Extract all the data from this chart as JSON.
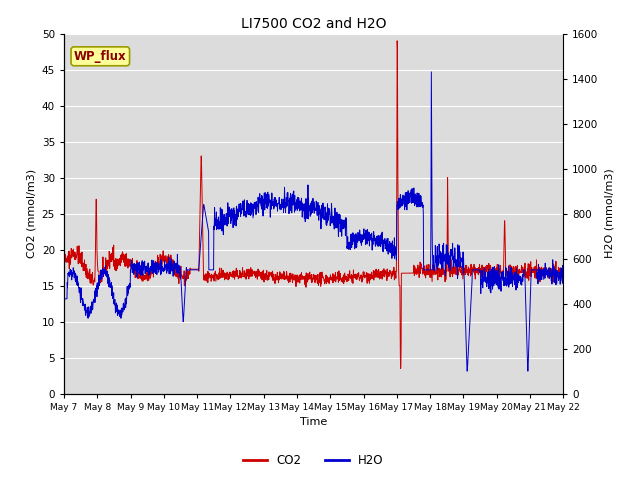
{
  "title": "LI7500 CO2 and H2O",
  "xlabel": "Time",
  "ylabel_left": "CO2 (mmol/m3)",
  "ylabel_right": "H2O (mmol/m3)",
  "annotation": "WP_flux",
  "co2_ylim": [
    0,
    50
  ],
  "h2o_ylim": [
    0,
    1600
  ],
  "co2_color": "#CC0000",
  "h2o_color": "#0000CC",
  "bg_color": "#DCDCDC",
  "grid_color": "#FFFFFF",
  "legend_co2": "CO2",
  "legend_h2o": "H2O",
  "tick_labels": [
    "May 7",
    "May 8",
    "May 9",
    "May 10",
    "May 11",
    "May 12",
    "May 13",
    "May 14",
    "May 15",
    "May 16",
    "May 17",
    "May 18",
    "May 19",
    "May 20",
    "May 21",
    "May 22"
  ],
  "n_points": 2000
}
